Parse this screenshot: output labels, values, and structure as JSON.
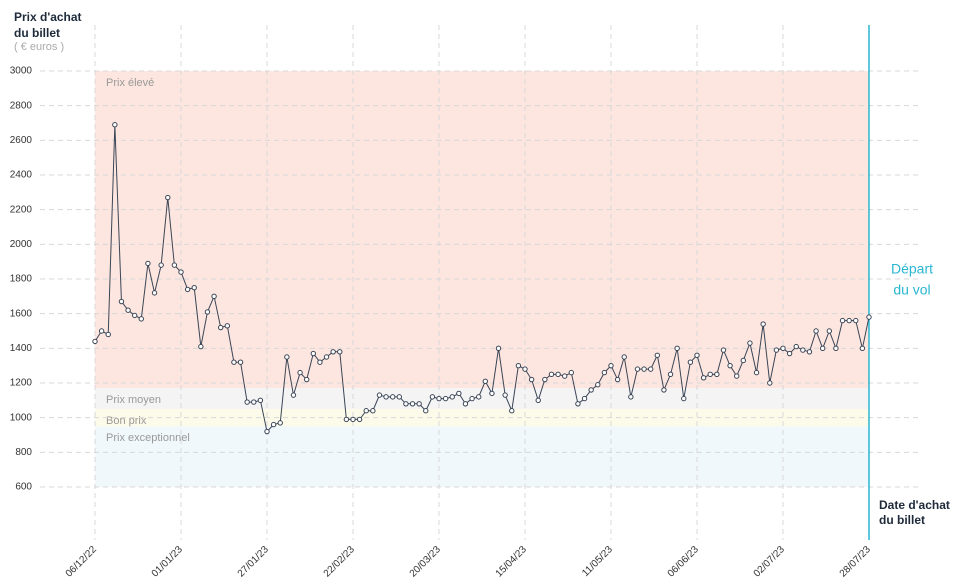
{
  "chart_data": {
    "type": "line",
    "y_label": [
      "Prix d'achat",
      "du billet"
    ],
    "y_unit": "( € euros )",
    "x_label": [
      "Date d'achat",
      "du billet"
    ],
    "event": {
      "x": "28/07/23",
      "label": [
        "Départ",
        "du vol"
      ],
      "color": "#29b6d1"
    },
    "bands": [
      {
        "name": "Prix élevé",
        "from": 1170,
        "to": 3000,
        "color": "#fde6df"
      },
      {
        "name": "Prix moyen",
        "from": 1050,
        "to": 1170,
        "color": "#f4f4f4"
      },
      {
        "name": "Bon prix",
        "from": 950,
        "to": 1050,
        "color": "#fcfbe9"
      },
      {
        "name": "Prix exceptionnel",
        "from": 600,
        "to": 950,
        "color": "#f0f8fc"
      }
    ],
    "ylim": [
      600,
      3000
    ],
    "yticks": [
      600,
      800,
      1000,
      1200,
      1400,
      1600,
      1800,
      2000,
      2200,
      2400,
      2600,
      2800,
      3000
    ],
    "xlim": [
      "06/12/22",
      "28/07/23"
    ],
    "xticks": [
      "06/12/22",
      "01/01/23",
      "27/01/23",
      "22/02/23",
      "20/03/23",
      "15/04/23",
      "11/05/23",
      "06/06/23",
      "02/07/23",
      "28/07/23"
    ],
    "grid": true,
    "x": [
      "06/12/22",
      "08/12/22",
      "10/12/22",
      "12/12/22",
      "14/12/22",
      "16/12/22",
      "18/12/22",
      "20/12/22",
      "22/12/22",
      "24/12/22",
      "26/12/22",
      "28/12/22",
      "30/12/22",
      "01/01/23",
      "03/01/23",
      "05/01/23",
      "07/01/23",
      "09/01/23",
      "11/01/23",
      "13/01/23",
      "15/01/23",
      "17/01/23",
      "19/01/23",
      "21/01/23",
      "23/01/23",
      "25/01/23",
      "27/01/23",
      "29/01/23",
      "31/01/23",
      "02/02/23",
      "04/02/23",
      "06/02/23",
      "08/02/23",
      "10/02/23",
      "12/02/23",
      "14/02/23",
      "16/02/23",
      "18/02/23",
      "20/02/23",
      "22/02/23",
      "24/02/23",
      "26/02/23",
      "28/02/23",
      "02/03/23",
      "04/03/23",
      "06/03/23",
      "08/03/23",
      "10/03/23",
      "12/03/23",
      "14/03/23",
      "16/03/23",
      "18/03/23",
      "20/03/23",
      "22/03/23",
      "24/03/23",
      "26/03/23",
      "28/03/23",
      "30/03/23",
      "01/04/23",
      "03/04/23",
      "05/04/23",
      "07/04/23",
      "09/04/23",
      "11/04/23",
      "13/04/23",
      "15/04/23",
      "17/04/23",
      "19/04/23",
      "21/04/23",
      "23/04/23",
      "25/04/23",
      "27/04/23",
      "29/04/23",
      "01/05/23",
      "03/05/23",
      "05/05/23",
      "07/05/23",
      "09/05/23",
      "11/05/23",
      "13/05/23",
      "15/05/23",
      "17/05/23",
      "19/05/23",
      "21/05/23",
      "23/05/23",
      "25/05/23",
      "27/05/23",
      "29/05/23",
      "31/05/23",
      "02/06/23",
      "04/06/23",
      "06/06/23",
      "08/06/23",
      "10/06/23",
      "12/06/23",
      "14/06/23",
      "16/06/23",
      "18/06/23",
      "20/06/23",
      "22/06/23",
      "24/06/23",
      "26/06/23",
      "28/06/23",
      "30/06/23",
      "02/07/23",
      "04/07/23",
      "06/07/23",
      "08/07/23",
      "10/07/23",
      "12/07/23",
      "14/07/23",
      "16/07/23",
      "18/07/23",
      "20/07/23",
      "22/07/23",
      "24/07/23",
      "26/07/23",
      "28/07/23"
    ],
    "series": [
      {
        "color": "#3a4556",
        "values": [
          1440,
          1500,
          1480,
          2690,
          1670,
          1620,
          1590,
          1570,
          1890,
          1720,
          1880,
          2270,
          1880,
          1840,
          1740,
          1750,
          1410,
          1610,
          1700,
          1520,
          1530,
          1320,
          1320,
          1090,
          1090,
          1100,
          920,
          960,
          970,
          1350,
          1130,
          1260,
          1220,
          1370,
          1320,
          1350,
          1380,
          1380,
          990,
          990,
          990,
          1040,
          1040,
          1130,
          1120,
          1120,
          1120,
          1080,
          1080,
          1080,
          1040,
          1120,
          1110,
          1110,
          1120,
          1140,
          1080,
          1110,
          1120,
          1210,
          1140,
          1400,
          1130,
          1040,
          1300,
          1280,
          1220,
          1100,
          1220,
          1250,
          1250,
          1240,
          1260,
          1080,
          1110,
          1160,
          1190,
          1260,
          1300,
          1220,
          1350,
          1120,
          1280,
          1280,
          1280,
          1360,
          1160,
          1250,
          1400,
          1110,
          1320,
          1360,
          1230,
          1250,
          1250,
          1390,
          1300,
          1240,
          1330,
          1430,
          1260,
          1540,
          1200,
          1390,
          1400,
          1370,
          1410,
          1390,
          1380,
          1500,
          1400,
          1500,
          1400,
          1560,
          1560,
          1560,
          1400,
          1580
        ]
      }
    ]
  }
}
